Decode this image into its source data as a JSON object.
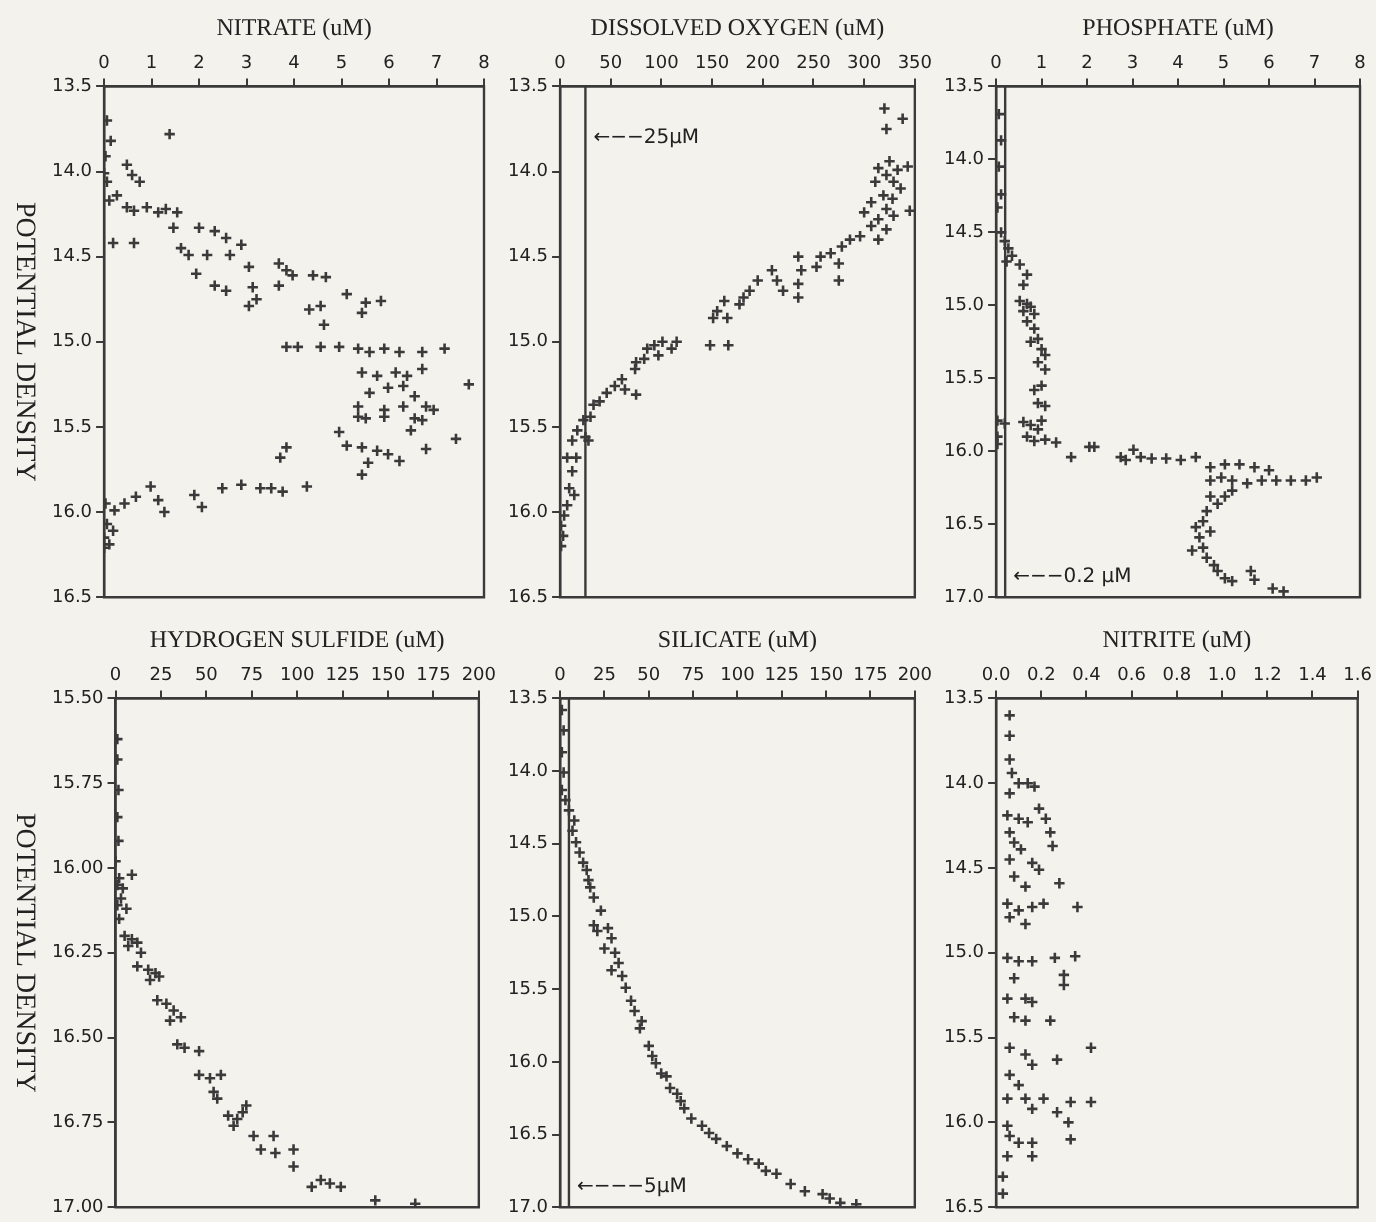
{
  "chart_data": [
    {
      "type": "scatter",
      "xlabel": "NITRATE (uM)",
      "ylabel": "POTENTIAL DENSITY",
      "color": "#3a3a3a",
      "marker": "cross",
      "xlim": [
        0,
        8
      ],
      "xticks": [
        0,
        1,
        2,
        3,
        4,
        5,
        6,
        7,
        8
      ],
      "ylim": [
        16.5,
        13.5
      ],
      "yticks": [
        13.5,
        {
          "value": 14,
          "label": "14.0"
        },
        14.5,
        {
          "value": 15,
          "label": "15.0"
        },
        15.5,
        {
          "value": 16,
          "label": "16.0"
        },
        16.5
      ],
      "x": [
        0.06,
        0.14,
        1.38,
        0.03,
        0.48,
        0.59,
        0.75,
        0,
        0.06,
        0.27,
        0.11,
        0.48,
        0.63,
        0.9,
        1.14,
        1.3,
        1.54,
        0.19,
        0.63,
        1.46,
        1.62,
        1.78,
        2.0,
        2.33,
        2.57,
        2.17,
        2.65,
        2.89,
        1.94,
        2.33,
        2.57,
        3.05,
        3.13,
        3.05,
        3.21,
        3.68,
        3.84,
        3.68,
        3.97,
        4.4,
        4.67,
        4.32,
        4.56,
        4.63,
        5.11,
        5.51,
        5.83,
        5.43,
        3.84,
        4.08,
        4.56,
        4.95,
        5.35,
        5.59,
        5.9,
        6.22,
        6.7,
        7.17,
        5.43,
        5.75,
        6.14,
        6.38,
        6.7,
        5.59,
        5.98,
        6.3,
        6.54,
        7.68,
        5.35,
        5.9,
        6.3,
        6.78,
        6.94,
        5.35,
        5.51,
        5.9,
        6.54,
        6.7,
        6.46,
        4.95,
        5.11,
        5.43,
        5.75,
        5.98,
        6.22,
        6.78,
        7.41,
        5.43,
        5.56,
        3.84,
        3.71,
        4.27,
        2.89,
        3.29,
        3.52,
        3.76,
        2.49,
        1.9,
        2.06,
        0.98,
        1.14,
        1.27,
        0.67,
        0.43,
        0.22,
        0.03,
        0.06,
        0.19,
        0,
        0,
        0.11
      ],
      "values": [
        13.7,
        13.82,
        13.78,
        13.91,
        13.96,
        14.02,
        14.06,
        14.01,
        14.06,
        14.14,
        14.17,
        14.21,
        14.23,
        14.21,
        14.24,
        14.22,
        14.24,
        14.42,
        14.42,
        14.33,
        14.45,
        14.49,
        14.33,
        14.35,
        14.39,
        14.49,
        14.49,
        14.43,
        14.6,
        14.67,
        14.7,
        14.56,
        14.68,
        14.79,
        14.75,
        14.54,
        14.58,
        14.67,
        14.61,
        14.61,
        14.62,
        14.81,
        14.79,
        14.9,
        14.72,
        14.77,
        14.76,
        14.83,
        15.03,
        15.03,
        15.03,
        15.03,
        15.04,
        15.06,
        15.04,
        15.06,
        15.06,
        15.04,
        15.18,
        15.2,
        15.18,
        15.2,
        15.16,
        15.3,
        15.27,
        15.26,
        15.32,
        15.25,
        15.38,
        15.4,
        15.38,
        15.38,
        15.4,
        15.44,
        15.45,
        15.44,
        15.45,
        15.46,
        15.52,
        15.53,
        15.61,
        15.62,
        15.64,
        15.66,
        15.7,
        15.63,
        15.57,
        15.78,
        15.71,
        15.62,
        15.68,
        15.85,
        15.84,
        15.86,
        15.86,
        15.88,
        15.86,
        15.9,
        15.97,
        15.85,
        15.93,
        16.0,
        15.91,
        15.95,
        15.99,
        15.95,
        16.07,
        16.11,
        16.15,
        16.21,
        16.19
      ]
    },
    {
      "type": "scatter",
      "xlabel": "DISSOLVED OXYGEN (uM)",
      "color": "#3a3a3a",
      "marker": "cross",
      "xlim": [
        0,
        350
      ],
      "xticks": [
        0,
        50,
        100,
        150,
        200,
        250,
        300,
        350
      ],
      "ylim": [
        16.5,
        13.5
      ],
      "yticks": [
        13.5,
        {
          "value": 14,
          "label": "14.0"
        },
        14.5,
        {
          "value": 15,
          "label": "15.0"
        },
        15.5,
        {
          "value": 16,
          "label": "16.0"
        },
        16.5
      ],
      "ref_lines": [
        {
          "axis": "x",
          "value": 25,
          "label": "←−−25µM"
        }
      ],
      "x": [
        320,
        338,
        322,
        325,
        314,
        322,
        333,
        343,
        311,
        329,
        336,
        319,
        328,
        307,
        322,
        300,
        314,
        329,
        345,
        307,
        322,
        296,
        314,
        286,
        278,
        267,
        275,
        257,
        253,
        235,
        238,
        275,
        209,
        214,
        220,
        235,
        235,
        195,
        187,
        181,
        177,
        162,
        155,
        151,
        165,
        148,
        166,
        115,
        110,
        101,
        93,
        97,
        86,
        83,
        75,
        74,
        61,
        64,
        75,
        54,
        46,
        39,
        33,
        30,
        23,
        25,
        28,
        17,
        12,
        16,
        7,
        12,
        9,
        14,
        7,
        4,
        1,
        3,
        1
      ],
      "values": [
        13.63,
        13.69,
        13.75,
        13.94,
        13.98,
        14.02,
        13.99,
        13.97,
        14.06,
        14.06,
        14.1,
        14.14,
        14.16,
        14.18,
        14.22,
        14.24,
        14.28,
        14.26,
        14.23,
        14.32,
        14.34,
        14.38,
        14.4,
        14.4,
        14.44,
        14.48,
        14.54,
        14.5,
        14.56,
        14.5,
        14.58,
        14.64,
        14.58,
        14.64,
        14.7,
        14.66,
        14.74,
        14.64,
        14.7,
        14.74,
        14.78,
        14.76,
        14.82,
        14.86,
        14.86,
        15.02,
        15.02,
        15.0,
        15.04,
        15.0,
        15.02,
        15.08,
        15.04,
        15.1,
        15.12,
        15.16,
        15.22,
        15.28,
        15.31,
        15.26,
        15.3,
        15.35,
        15.37,
        15.44,
        15.46,
        15.56,
        15.58,
        15.52,
        15.58,
        15.68,
        15.68,
        15.76,
        15.86,
        15.9,
        15.96,
        16.02,
        16.08,
        16.14,
        16.2
      ]
    },
    {
      "type": "scatter",
      "xlabel": "PHOSPHATE (uM)",
      "color": "#3a3a3a",
      "marker": "cross",
      "xlim": [
        0,
        8
      ],
      "xticks": [
        0,
        1,
        2,
        3,
        4,
        5,
        6,
        7,
        8
      ],
      "ylim": [
        17,
        13.5
      ],
      "yticks": [
        13.5,
        {
          "value": 14,
          "label": "14.0"
        },
        14.5,
        {
          "value": 15,
          "label": "15.0"
        },
        15.5,
        {
          "value": 16,
          "label": "16.0"
        },
        16.5,
        {
          "value": 17,
          "label": "17.0"
        }
      ],
      "ref_lines": [
        {
          "axis": "x",
          "value": 0.2,
          "label": "←−−0.2 µM"
        }
      ],
      "x": [
        0.06,
        0.11,
        0.06,
        0.11,
        0.03,
        0.11,
        0.19,
        0.27,
        0.35,
        0.23,
        0.52,
        0.68,
        0.6,
        0.52,
        0.68,
        0.76,
        0.6,
        0.84,
        0.68,
        0.84,
        0.92,
        0.76,
        1.0,
        1.08,
        0.92,
        1.08,
        1.0,
        0.84,
        0.92,
        1.08,
        1.0,
        0.92,
        0.03,
        0.19,
        0.6,
        0.76,
        0.68,
        0.84,
        0.03,
        0.03,
        1.08,
        1.32,
        1.65,
        2.05,
        2.16,
        2.74,
        2.85,
        3.02,
        3.18,
        3.42,
        3.74,
        4.06,
        4.39,
        4.71,
        5.03,
        5.35,
        5.68,
        6.0,
        6.16,
        6.48,
        6.81,
        7.05,
        5.84,
        5.52,
        5.19,
        4.95,
        4.71,
        5.19,
        5.03,
        4.71,
        4.87,
        4.63,
        4.55,
        4.39,
        4.71,
        4.47,
        4.55,
        4.31,
        4.63,
        4.79,
        4.87,
        5.03,
        5.19,
        5.6,
        5.68,
        6.08,
        6.32
      ],
      "values": [
        13.69,
        13.87,
        14.05,
        14.24,
        14.33,
        14.5,
        14.56,
        14.61,
        14.66,
        14.7,
        14.72,
        14.79,
        14.86,
        14.97,
        14.99,
        15.01,
        15.04,
        15.06,
        15.11,
        15.16,
        15.23,
        15.25,
        15.3,
        15.34,
        15.39,
        15.44,
        15.55,
        15.58,
        15.67,
        15.69,
        15.79,
        15.85,
        15.79,
        15.81,
        15.8,
        15.82,
        15.9,
        15.93,
        15.9,
        15.95,
        15.92,
        15.94,
        16.04,
        15.97,
        15.97,
        16.04,
        16.06,
        15.99,
        16.04,
        16.05,
        16.05,
        16.06,
        16.04,
        16.11,
        16.09,
        16.09,
        16.11,
        16.13,
        16.2,
        16.2,
        16.2,
        16.18,
        16.2,
        16.22,
        16.2,
        16.18,
        16.2,
        16.27,
        16.31,
        16.31,
        16.36,
        16.41,
        16.48,
        16.52,
        16.55,
        16.59,
        16.66,
        16.68,
        16.73,
        16.78,
        16.82,
        16.87,
        16.89,
        16.82,
        16.88,
        16.94,
        16.96
      ]
    },
    {
      "type": "scatter",
      "xlabel": "HYDROGEN SULFIDE (uM)",
      "ylabel": "POTENTIAL DENSITY",
      "color": "#3a3a3a",
      "marker": "cross",
      "xlim": [
        0,
        200
      ],
      "xticks": [
        0,
        25,
        50,
        75,
        100,
        125,
        150,
        175,
        200
      ],
      "ylim": [
        17,
        15.5
      ],
      "yticks": [
        {
          "value": 15.5,
          "label": "15.50"
        },
        15.75,
        {
          "value": 16,
          "label": "16.00"
        },
        16.25,
        {
          "value": 16.5,
          "label": "16.50"
        },
        16.75,
        {
          "value": 17,
          "label": "17.00"
        }
      ],
      "x": [
        1,
        1,
        1.6,
        1,
        1.6,
        0,
        2,
        1,
        4,
        9,
        3,
        1,
        6,
        2,
        5,
        9,
        12,
        7,
        14,
        12,
        18,
        22,
        19,
        24,
        23,
        28,
        32,
        30,
        36,
        34,
        38,
        46,
        46,
        52,
        58,
        54,
        56,
        62,
        67,
        70,
        72,
        65,
        76,
        80,
        87,
        88,
        98,
        98,
        108,
        113,
        118,
        124,
        143,
        165
      ],
      "values": [
        15.62,
        15.68,
        15.77,
        15.85,
        15.92,
        15.98,
        16.03,
        16.05,
        16.06,
        16.02,
        16.09,
        16.11,
        16.12,
        16.15,
        16.2,
        16.21,
        16.22,
        16.23,
        16.25,
        16.29,
        16.3,
        16.31,
        16.33,
        16.32,
        16.39,
        16.4,
        16.42,
        16.45,
        16.44,
        16.52,
        16.53,
        16.54,
        16.61,
        16.62,
        16.61,
        16.66,
        16.68,
        16.73,
        16.74,
        16.72,
        16.7,
        16.76,
        16.79,
        16.83,
        16.79,
        16.84,
        16.83,
        16.88,
        16.94,
        16.92,
        16.93,
        16.94,
        16.98,
        16.99
      ]
    },
    {
      "type": "scatter",
      "xlabel": "SILICATE (uM)",
      "color": "#3a3a3a",
      "marker": "cross",
      "xlim": [
        0,
        200
      ],
      "xticks": [
        0,
        25,
        50,
        75,
        100,
        125,
        150,
        175,
        200
      ],
      "ylim": [
        17,
        13.5
      ],
      "yticks": [
        13.5,
        {
          "value": 14,
          "label": "14.0"
        },
        14.5,
        {
          "value": 15,
          "label": "15.0"
        },
        15.5,
        {
          "value": 16,
          "label": "16.0"
        },
        16.5,
        {
          "value": 17,
          "label": "17.0"
        }
      ],
      "ref_lines": [
        {
          "axis": "x",
          "value": 5,
          "label": "←−−−5µM"
        }
      ],
      "x": [
        1,
        2,
        1,
        2,
        1,
        3,
        5,
        8,
        7,
        9,
        11,
        13,
        15,
        16,
        17,
        19,
        23,
        19,
        21,
        27,
        29,
        25,
        31,
        33,
        29,
        35,
        37,
        40,
        42,
        46,
        45,
        50,
        52,
        54,
        57,
        60,
        62,
        66,
        68,
        70,
        74,
        80,
        84,
        88,
        94,
        100,
        106,
        112,
        116,
        122,
        130,
        138,
        148,
        152,
        158,
        167
      ],
      "values": [
        13.58,
        13.72,
        13.87,
        14.01,
        14.13,
        14.2,
        14.27,
        14.34,
        14.41,
        14.49,
        14.56,
        14.63,
        14.68,
        14.75,
        14.8,
        14.87,
        14.96,
        15.06,
        15.1,
        15.08,
        15.15,
        15.22,
        15.25,
        15.32,
        15.37,
        15.41,
        15.49,
        15.58,
        15.65,
        15.72,
        15.77,
        15.89,
        15.96,
        16.01,
        16.08,
        16.1,
        16.18,
        16.22,
        16.27,
        16.32,
        16.39,
        16.44,
        16.49,
        16.53,
        16.58,
        16.63,
        16.67,
        16.7,
        16.75,
        16.77,
        16.84,
        16.89,
        16.91,
        16.94,
        16.97,
        16.98
      ]
    },
    {
      "type": "scatter",
      "xlabel": "NITRITE (uM)",
      "color": "#3a3a3a",
      "marker": "cross",
      "xlim": [
        0,
        1.6
      ],
      "xticks": [
        {
          "value": 0,
          "label": "0.0"
        },
        0.2,
        0.4,
        0.6,
        0.8,
        {
          "value": 1,
          "label": "1.0"
        },
        1.2,
        1.4,
        1.6
      ],
      "ylim": [
        16.5,
        13.5
      ],
      "yticks": [
        13.5,
        {
          "value": 14,
          "label": "14.0"
        },
        14.5,
        {
          "value": 15,
          "label": "15.0"
        },
        15.5,
        {
          "value": 16,
          "label": "16.0"
        },
        16.5
      ],
      "x": [
        0.06,
        0.06,
        0.06,
        0.07,
        0.1,
        0.14,
        0.17,
        0.06,
        0.19,
        0.05,
        0.1,
        0.14,
        0.22,
        0.24,
        0.25,
        0.06,
        0.08,
        0.11,
        0.06,
        0.16,
        0.19,
        0.28,
        0.08,
        0.13,
        0.05,
        0.1,
        0.16,
        0.21,
        0.36,
        0.06,
        0.13,
        0.05,
        0.1,
        0.16,
        0.26,
        0.35,
        0.08,
        0.3,
        0.3,
        0.05,
        0.13,
        0.16,
        0.08,
        0.13,
        0.24,
        0.06,
        0.13,
        0.16,
        0.27,
        0.42,
        0.06,
        0.1,
        0.05,
        0.13,
        0.21,
        0.33,
        0.42,
        0.16,
        0.27,
        0.32,
        0.33,
        0.05,
        0.06,
        0.1,
        0.16,
        0.16,
        0.05,
        0.03,
        0.03
      ],
      "values": [
        13.6,
        13.72,
        13.86,
        13.94,
        14.0,
        14.0,
        14.02,
        14.06,
        14.15,
        14.19,
        14.21,
        14.23,
        14.21,
        14.29,
        14.37,
        14.29,
        14.35,
        14.39,
        14.45,
        14.47,
        14.51,
        14.59,
        14.55,
        14.61,
        14.71,
        14.75,
        14.73,
        14.71,
        14.73,
        14.79,
        14.83,
        15.03,
        15.05,
        15.05,
        15.03,
        15.02,
        15.15,
        15.13,
        15.19,
        15.27,
        15.27,
        15.29,
        15.38,
        15.4,
        15.4,
        15.56,
        15.6,
        15.66,
        15.63,
        15.56,
        15.72,
        15.78,
        15.86,
        15.86,
        15.86,
        15.88,
        15.88,
        15.92,
        15.94,
        16.0,
        16.1,
        16.02,
        16.08,
        16.12,
        16.12,
        16.2,
        16.2,
        16.32,
        16.42
      ]
    }
  ]
}
